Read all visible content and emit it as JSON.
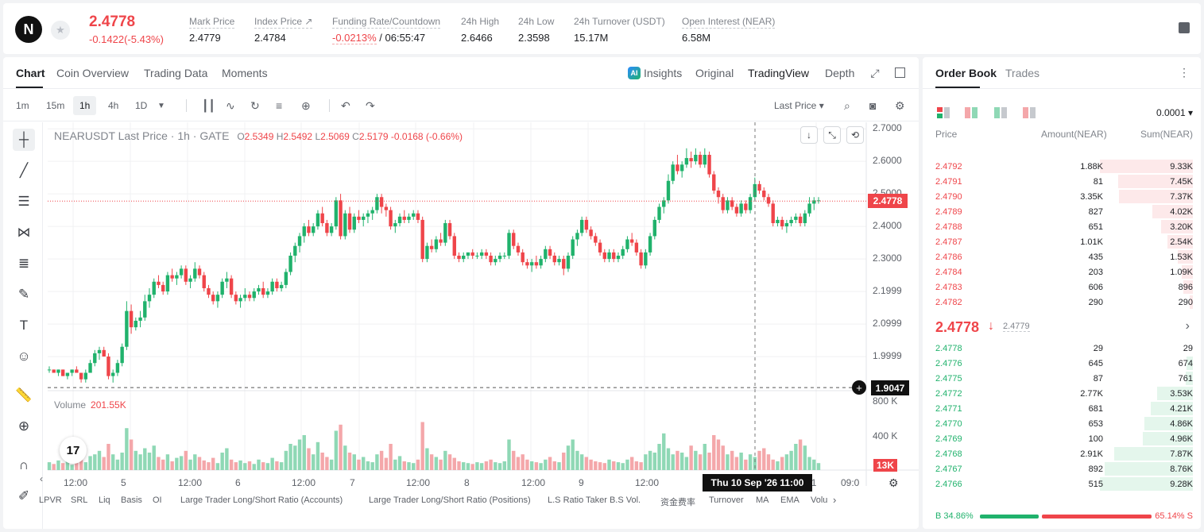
{
  "ticker": {
    "logo_letter": "N",
    "price": "2.4778",
    "change": "-0.1422(-5.43%)",
    "stats": [
      {
        "label": "Mark Price",
        "value": "2.4779"
      },
      {
        "label": "Index Price ↗",
        "value": "2.4784"
      },
      {
        "label": "Funding Rate/Countdown",
        "value_red": "-0.0213%",
        "value": " / 06:55:47"
      },
      {
        "label": "24h High",
        "value": "2.6466"
      },
      {
        "label": "24h Low",
        "value": "2.3598"
      },
      {
        "label": "24h Turnover (USDT)",
        "value": "15.17M"
      },
      {
        "label": "Open Interest (NEAR)",
        "value": "6.58M"
      }
    ]
  },
  "chart_tabs": [
    "Chart",
    "Coin Overview",
    "Trading Data",
    "Moments"
  ],
  "chart_views": {
    "insights": "Insights",
    "original": "Original",
    "tradingview": "TradingView",
    "depth": "Depth",
    "ai_badge": "AI"
  },
  "timeframes": [
    "1m",
    "15m",
    "1h",
    "4h",
    "1D"
  ],
  "toolbar": {
    "last_price": "Last Price"
  },
  "legend": {
    "title": "NEARUSDT Last Price · 1h · GATE",
    "open": "2.5349",
    "high": "2.5492",
    "low": "2.5069",
    "close": "2.5179",
    "change": "-0.0168 (-0.66%)"
  },
  "volume": {
    "label": "Volume",
    "value": "201.55K",
    "tag": "13K"
  },
  "price_axis": [
    "2.7000",
    "2.6000",
    "2.5000",
    "2.4000",
    "2.3000",
    "2.1999",
    "2.0999",
    "1.9999"
  ],
  "volume_axis": [
    "800 K",
    "400 K"
  ],
  "time_axis": [
    "12:00",
    "5",
    "12:00",
    "6",
    "12:00",
    "7",
    "12:00",
    "8",
    "12:00",
    "9",
    "12:00",
    "11",
    "09:0"
  ],
  "price_tag": "2.4778",
  "crosshair_price": "1.9047",
  "crosshair_date": "Thu 10 Sep '26   11:00",
  "tv_logo": "17",
  "indicators": [
    "LPVR",
    "SRL",
    "Liq",
    "Basis",
    "OI",
    "Large Trader Long/Short Ratio (Accounts)",
    "Large Trader Long/Short Ratio (Positions)",
    "L.S Ratio",
    "Taker B.S Vol.",
    "资金费率",
    "Turnover",
    "MA",
    "EMA",
    "Volu"
  ],
  "colors": {
    "up": "#20b26c",
    "down": "#ef454a",
    "up_vol": "#8fd8b5",
    "down_vol": "#f4a7aa"
  },
  "chart_data": {
    "type": "candlestick",
    "candles": [
      [
        1.96,
        1.97,
        1.95,
        1.96
      ],
      [
        1.96,
        1.96,
        1.95,
        1.95
      ],
      [
        1.95,
        1.96,
        1.94,
        1.96
      ],
      [
        1.96,
        1.96,
        1.94,
        1.94
      ],
      [
        1.94,
        1.95,
        1.93,
        1.95
      ],
      [
        1.95,
        1.96,
        1.94,
        1.96
      ],
      [
        1.96,
        1.97,
        1.95,
        1.95
      ],
      [
        1.95,
        1.95,
        1.92,
        1.93
      ],
      [
        1.93,
        1.96,
        1.92,
        1.95
      ],
      [
        1.95,
        1.99,
        1.95,
        1.98
      ],
      [
        1.98,
        2.02,
        1.97,
        2.01
      ],
      [
        2.01,
        2.03,
        1.99,
        2.02
      ],
      [
        2.02,
        2.03,
        2.0,
        2.0
      ],
      [
        2.0,
        2.01,
        1.93,
        1.94
      ],
      [
        1.94,
        1.96,
        1.92,
        1.95
      ],
      [
        1.95,
        1.99,
        1.94,
        1.98
      ],
      [
        1.98,
        2.04,
        1.97,
        2.03
      ],
      [
        2.03,
        2.17,
        2.02,
        2.14
      ],
      [
        2.14,
        2.16,
        2.07,
        2.09
      ],
      [
        2.09,
        2.12,
        2.08,
        2.11
      ],
      [
        2.11,
        2.14,
        2.09,
        2.12
      ],
      [
        2.12,
        2.19,
        2.11,
        2.17
      ],
      [
        2.17,
        2.21,
        2.15,
        2.19
      ],
      [
        2.19,
        2.24,
        2.18,
        2.23
      ],
      [
        2.23,
        2.25,
        2.21,
        2.22
      ],
      [
        2.22,
        2.23,
        2.19,
        2.2
      ],
      [
        2.2,
        2.26,
        2.19,
        2.25
      ],
      [
        2.25,
        2.27,
        2.23,
        2.24
      ],
      [
        2.24,
        2.26,
        2.22,
        2.25
      ],
      [
        2.25,
        2.28,
        2.24,
        2.27
      ],
      [
        2.27,
        2.28,
        2.22,
        2.23
      ],
      [
        2.23,
        2.25,
        2.21,
        2.24
      ],
      [
        2.24,
        2.29,
        2.23,
        2.27
      ],
      [
        2.27,
        2.28,
        2.24,
        2.25
      ],
      [
        2.25,
        2.26,
        2.2,
        2.21
      ],
      [
        2.21,
        2.22,
        2.18,
        2.19
      ],
      [
        2.19,
        2.2,
        2.16,
        2.17
      ],
      [
        2.17,
        2.2,
        2.15,
        2.19
      ],
      [
        2.19,
        2.24,
        2.18,
        2.23
      ],
      [
        2.23,
        2.26,
        2.21,
        2.24
      ],
      [
        2.24,
        2.25,
        2.18,
        2.19
      ],
      [
        2.19,
        2.2,
        2.16,
        2.17
      ],
      [
        2.17,
        2.19,
        2.15,
        2.18
      ],
      [
        2.18,
        2.21,
        2.17,
        2.19
      ],
      [
        2.19,
        2.2,
        2.17,
        2.18
      ],
      [
        2.18,
        2.21,
        2.17,
        2.2
      ],
      [
        2.2,
        2.22,
        2.19,
        2.21
      ],
      [
        2.21,
        2.23,
        2.18,
        2.19
      ],
      [
        2.19,
        2.21,
        2.18,
        2.2
      ],
      [
        2.2,
        2.24,
        2.19,
        2.23
      ],
      [
        2.23,
        2.24,
        2.2,
        2.21
      ],
      [
        2.21,
        2.23,
        2.2,
        2.22
      ],
      [
        2.22,
        2.27,
        2.21,
        2.26
      ],
      [
        2.26,
        2.32,
        2.25,
        2.31
      ],
      [
        2.31,
        2.35,
        2.29,
        2.34
      ],
      [
        2.34,
        2.38,
        2.32,
        2.37
      ],
      [
        2.37,
        2.41,
        2.35,
        2.4
      ],
      [
        2.4,
        2.42,
        2.37,
        2.38
      ],
      [
        2.38,
        2.41,
        2.37,
        2.4
      ],
      [
        2.4,
        2.45,
        2.39,
        2.44
      ],
      [
        2.44,
        2.46,
        2.4,
        2.41
      ],
      [
        2.41,
        2.42,
        2.37,
        2.38
      ],
      [
        2.38,
        2.41,
        2.37,
        2.4
      ],
      [
        2.4,
        2.49,
        2.39,
        2.48
      ],
      [
        2.48,
        2.5,
        2.36,
        2.37
      ],
      [
        2.37,
        2.45,
        2.36,
        2.44
      ],
      [
        2.44,
        2.46,
        2.38,
        2.39
      ],
      [
        2.39,
        2.44,
        2.38,
        2.43
      ],
      [
        2.43,
        2.45,
        2.41,
        2.42
      ],
      [
        2.42,
        2.44,
        2.4,
        2.43
      ],
      [
        2.43,
        2.45,
        2.41,
        2.44
      ],
      [
        2.44,
        2.46,
        2.42,
        2.45
      ],
      [
        2.45,
        2.5,
        2.44,
        2.49
      ],
      [
        2.49,
        2.5,
        2.44,
        2.46
      ],
      [
        2.46,
        2.47,
        2.43,
        2.45
      ],
      [
        2.45,
        2.46,
        2.39,
        2.4
      ],
      [
        2.4,
        2.42,
        2.38,
        2.41
      ],
      [
        2.41,
        2.44,
        2.4,
        2.43
      ],
      [
        2.43,
        2.45,
        2.41,
        2.42
      ],
      [
        2.42,
        2.44,
        2.41,
        2.43
      ],
      [
        2.43,
        2.45,
        2.42,
        2.44
      ],
      [
        2.44,
        2.45,
        2.41,
        2.42
      ],
      [
        2.42,
        2.43,
        2.29,
        2.3
      ],
      [
        2.3,
        2.35,
        2.29,
        2.34
      ],
      [
        2.34,
        2.36,
        2.32,
        2.33
      ],
      [
        2.33,
        2.37,
        2.32,
        2.36
      ],
      [
        2.36,
        2.38,
        2.34,
        2.35
      ],
      [
        2.35,
        2.42,
        2.34,
        2.41
      ],
      [
        2.41,
        2.42,
        2.36,
        2.37
      ],
      [
        2.37,
        2.38,
        2.3,
        2.31
      ],
      [
        2.31,
        2.32,
        2.29,
        2.3
      ],
      [
        2.3,
        2.32,
        2.29,
        2.31
      ],
      [
        2.31,
        2.32,
        2.3,
        2.32
      ],
      [
        2.32,
        2.33,
        2.3,
        2.31
      ],
      [
        2.31,
        2.32,
        2.3,
        2.31
      ],
      [
        2.31,
        2.33,
        2.3,
        2.32
      ],
      [
        2.32,
        2.33,
        2.3,
        2.31
      ],
      [
        2.31,
        2.32,
        2.28,
        2.29
      ],
      [
        2.29,
        2.31,
        2.28,
        2.3
      ],
      [
        2.3,
        2.32,
        2.29,
        2.31
      ],
      [
        2.31,
        2.32,
        2.3,
        2.31
      ],
      [
        2.31,
        2.39,
        2.3,
        2.38
      ],
      [
        2.38,
        2.39,
        2.33,
        2.34
      ],
      [
        2.34,
        2.35,
        2.31,
        2.32
      ],
      [
        2.32,
        2.33,
        2.28,
        2.29
      ],
      [
        2.29,
        2.3,
        2.27,
        2.28
      ],
      [
        2.28,
        2.3,
        2.26,
        2.29
      ],
      [
        2.29,
        2.31,
        2.27,
        2.28
      ],
      [
        2.28,
        2.31,
        2.27,
        2.3
      ],
      [
        2.3,
        2.34,
        2.29,
        2.33
      ],
      [
        2.33,
        2.34,
        2.3,
        2.31
      ],
      [
        2.31,
        2.32,
        2.28,
        2.29
      ],
      [
        2.29,
        2.31,
        2.28,
        2.3
      ],
      [
        2.3,
        2.31,
        2.25,
        2.27
      ],
      [
        2.27,
        2.32,
        2.26,
        2.31
      ],
      [
        2.31,
        2.37,
        2.3,
        2.36
      ],
      [
        2.36,
        2.39,
        2.34,
        2.38
      ],
      [
        2.38,
        2.43,
        2.37,
        2.42
      ],
      [
        2.42,
        2.43,
        2.38,
        2.39
      ],
      [
        2.39,
        2.4,
        2.36,
        2.37
      ],
      [
        2.37,
        2.38,
        2.34,
        2.35
      ],
      [
        2.35,
        2.36,
        2.31,
        2.32
      ],
      [
        2.32,
        2.33,
        2.29,
        2.3
      ],
      [
        2.3,
        2.33,
        2.29,
        2.32
      ],
      [
        2.32,
        2.33,
        2.29,
        2.3
      ],
      [
        2.3,
        2.32,
        2.29,
        2.31
      ],
      [
        2.31,
        2.34,
        2.3,
        2.33
      ],
      [
        2.33,
        2.37,
        2.32,
        2.36
      ],
      [
        2.36,
        2.38,
        2.34,
        2.35
      ],
      [
        2.35,
        2.36,
        2.31,
        2.32
      ],
      [
        2.32,
        2.33,
        2.27,
        2.28
      ],
      [
        2.28,
        2.33,
        2.27,
        2.32
      ],
      [
        2.32,
        2.38,
        2.31,
        2.37
      ],
      [
        2.37,
        2.43,
        2.36,
        2.42
      ],
      [
        2.42,
        2.47,
        2.41,
        2.46
      ],
      [
        2.46,
        2.49,
        2.44,
        2.48
      ],
      [
        2.48,
        2.56,
        2.47,
        2.54
      ],
      [
        2.54,
        2.6,
        2.53,
        2.59
      ],
      [
        2.59,
        2.62,
        2.56,
        2.57
      ],
      [
        2.57,
        2.6,
        2.55,
        2.59
      ],
      [
        2.59,
        2.64,
        2.58,
        2.61
      ],
      [
        2.61,
        2.63,
        2.58,
        2.6
      ],
      [
        2.6,
        2.64,
        2.59,
        2.62
      ],
      [
        2.62,
        2.63,
        2.58,
        2.59
      ],
      [
        2.59,
        2.64,
        2.58,
        2.62
      ],
      [
        2.62,
        2.63,
        2.55,
        2.56
      ],
      [
        2.56,
        2.57,
        2.5,
        2.51
      ],
      [
        2.51,
        2.52,
        2.47,
        2.49
      ],
      [
        2.49,
        2.5,
        2.44,
        2.45
      ],
      [
        2.45,
        2.49,
        2.44,
        2.48
      ],
      [
        2.48,
        2.49,
        2.45,
        2.46
      ],
      [
        2.46,
        2.47,
        2.43,
        2.44
      ],
      [
        2.44,
        2.48,
        2.43,
        2.47
      ],
      [
        2.47,
        2.48,
        2.44,
        2.45
      ],
      [
        2.45,
        2.5,
        2.44,
        2.49
      ],
      [
        2.49,
        2.55,
        2.48,
        2.53
      ],
      [
        2.53,
        2.54,
        2.5,
        2.51
      ],
      [
        2.51,
        2.52,
        2.48,
        2.49
      ],
      [
        2.49,
        2.5,
        2.46,
        2.47
      ],
      [
        2.47,
        2.48,
        2.4,
        2.41
      ],
      [
        2.41,
        2.43,
        2.4,
        2.42
      ],
      [
        2.42,
        2.43,
        2.39,
        2.4
      ],
      [
        2.4,
        2.42,
        2.38,
        2.41
      ],
      [
        2.41,
        2.43,
        2.4,
        2.42
      ],
      [
        2.42,
        2.44,
        2.41,
        2.43
      ],
      [
        2.43,
        2.44,
        2.4,
        2.41
      ],
      [
        2.41,
        2.45,
        2.4,
        2.44
      ],
      [
        2.44,
        2.49,
        2.43,
        2.47
      ],
      [
        2.47,
        2.49,
        2.45,
        2.48
      ],
      [
        2.48,
        2.49,
        2.47,
        2.48
      ]
    ],
    "volume": [
      9,
      7,
      11,
      8,
      10,
      6,
      12,
      14,
      9,
      16,
      18,
      22,
      15,
      30,
      18,
      12,
      20,
      48,
      35,
      22,
      18,
      25,
      20,
      28,
      15,
      12,
      18,
      10,
      14,
      16,
      22,
      12,
      18,
      15,
      11,
      9,
      14,
      8,
      20,
      25,
      12,
      9,
      11,
      8,
      10,
      7,
      12,
      9,
      8,
      14,
      10,
      9,
      22,
      30,
      28,
      35,
      40,
      25,
      18,
      32,
      20,
      15,
      12,
      45,
      52,
      28,
      20,
      18,
      12,
      15,
      10,
      9,
      18,
      22,
      14,
      30,
      12,
      16,
      10,
      9,
      8,
      12,
      55,
      25,
      18,
      15,
      12,
      22,
      18,
      14,
      10,
      9,
      8,
      7,
      9,
      8,
      10,
      12,
      9,
      8,
      10,
      35,
      22,
      15,
      18,
      12,
      10,
      9,
      8,
      12,
      15,
      10,
      9,
      20,
      28,
      35,
      22,
      18,
      15,
      12,
      10,
      9,
      8,
      12,
      10,
      9,
      8,
      12,
      15,
      10,
      9,
      18,
      22,
      20,
      30,
      42,
      25,
      18,
      22,
      20,
      15,
      28,
      22,
      18,
      30,
      20,
      40,
      35,
      28,
      18,
      22,
      15,
      20,
      12,
      18,
      15,
      22,
      25,
      18,
      12,
      10,
      15,
      18,
      22,
      30,
      35,
      28,
      15,
      12,
      8
    ],
    "vol_ylim": [
      0,
      800
    ],
    "ylim": [
      1.9,
      2.72
    ]
  },
  "orderbook": {
    "tabs": [
      "Order Book",
      "Trades"
    ],
    "step": "0.0001",
    "headers": [
      "Price",
      "Amount(NEAR)",
      "Sum(NEAR)"
    ],
    "asks": [
      {
        "p": "2.4792",
        "a": "1.88K",
        "s": "9.33K",
        "depth": 0.99
      },
      {
        "p": "2.4791",
        "a": "81",
        "s": "7.45K",
        "depth": 0.8
      },
      {
        "p": "2.4790",
        "a": "3.35K",
        "s": "7.37K",
        "depth": 0.79
      },
      {
        "p": "2.4789",
        "a": "827",
        "s": "4.02K",
        "depth": 0.43
      },
      {
        "p": "2.4788",
        "a": "651",
        "s": "3.20K",
        "depth": 0.34
      },
      {
        "p": "2.4787",
        "a": "1.01K",
        "s": "2.54K",
        "depth": 0.27
      },
      {
        "p": "2.4786",
        "a": "435",
        "s": "1.53K",
        "depth": 0.16
      },
      {
        "p": "2.4784",
        "a": "203",
        "s": "1.09K",
        "depth": 0.12
      },
      {
        "p": "2.4783",
        "a": "606",
        "s": "896",
        "depth": 0.1
      },
      {
        "p": "2.4782",
        "a": "290",
        "s": "290",
        "depth": 0.03
      }
    ],
    "mid": {
      "price": "2.4778",
      "arrow": "↓",
      "mark": "2.4779"
    },
    "bids": [
      {
        "p": "2.4778",
        "a": "29",
        "s": "29",
        "depth": 0.0
      },
      {
        "p": "2.4776",
        "a": "645",
        "s": "674",
        "depth": 0.07
      },
      {
        "p": "2.4775",
        "a": "87",
        "s": "761",
        "depth": 0.08
      },
      {
        "p": "2.4772",
        "a": "2.77K",
        "s": "3.53K",
        "depth": 0.38
      },
      {
        "p": "2.4771",
        "a": "681",
        "s": "4.21K",
        "depth": 0.45
      },
      {
        "p": "2.4770",
        "a": "653",
        "s": "4.86K",
        "depth": 0.52
      },
      {
        "p": "2.4769",
        "a": "100",
        "s": "4.96K",
        "depth": 0.53
      },
      {
        "p": "2.4768",
        "a": "2.91K",
        "s": "7.87K",
        "depth": 0.84
      },
      {
        "p": "2.4767",
        "a": "892",
        "s": "8.76K",
        "depth": 0.94
      },
      {
        "p": "2.4766",
        "a": "515",
        "s": "9.28K",
        "depth": 0.99
      }
    ],
    "ratio": {
      "buy_label": "B",
      "buy": "34.86%",
      "sell": "65.14%",
      "sell_label": "S",
      "buy_frac": 0.3486
    }
  }
}
